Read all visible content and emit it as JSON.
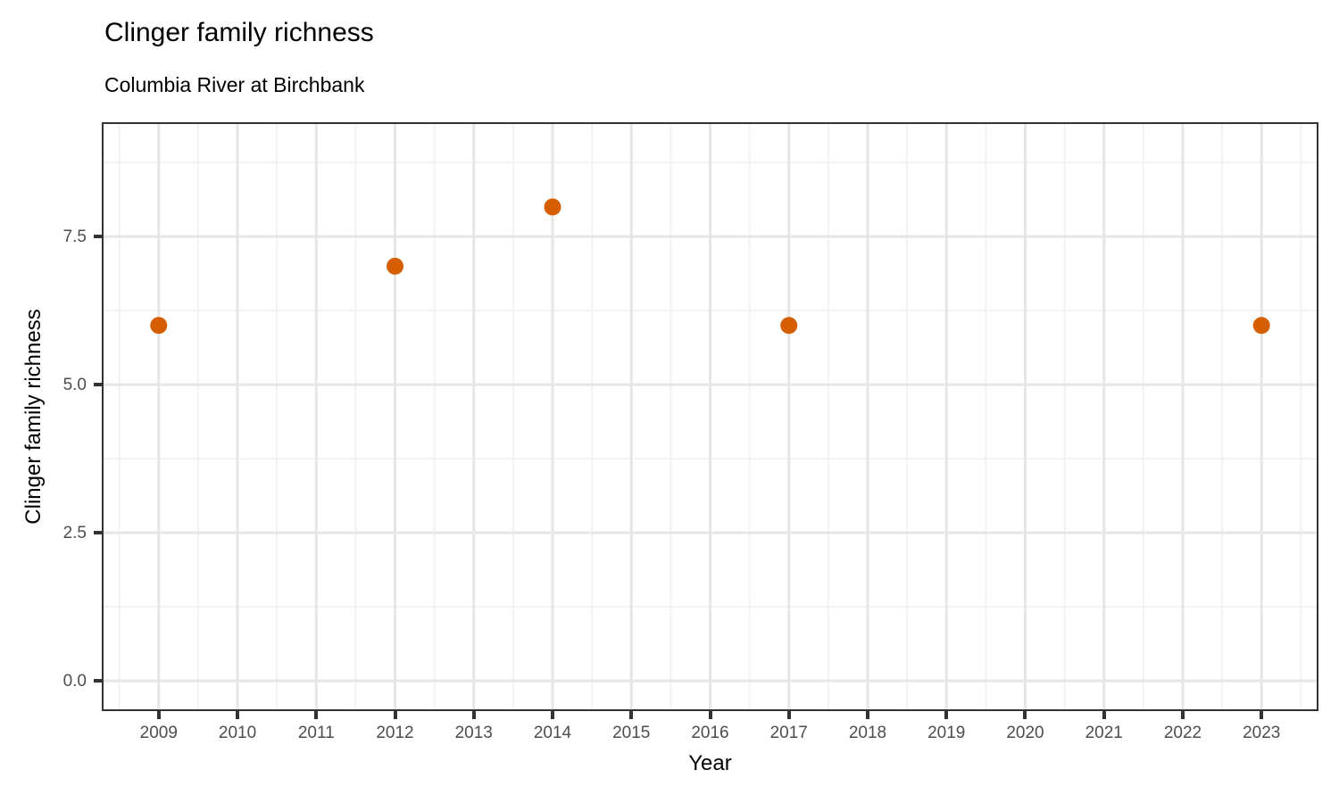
{
  "title": "Clinger family richness",
  "subtitle": "Columbia River at Birchbank",
  "chart_data": {
    "type": "scatter",
    "title": "Clinger family richness",
    "subtitle": "Columbia River at Birchbank",
    "xlabel": "Year",
    "ylabel": "Clinger family richness",
    "x": [
      2009,
      2012,
      2014,
      2017,
      2023
    ],
    "y": [
      6,
      7,
      8,
      6,
      6
    ],
    "xlim": [
      2008.3,
      2023.7
    ],
    "ylim": [
      -0.48,
      9.4
    ],
    "x_ticks": [
      2009,
      2010,
      2011,
      2012,
      2013,
      2014,
      2015,
      2016,
      2017,
      2018,
      2019,
      2020,
      2021,
      2022,
      2023
    ],
    "x_tick_labels": [
      "2009",
      "2010",
      "2011",
      "2012",
      "2013",
      "2014",
      "2015",
      "2016",
      "2017",
      "2018",
      "2019",
      "2020",
      "2021",
      "2022",
      "2023"
    ],
    "x_minor_ticks": [
      2008.5,
      2009.5,
      2010.5,
      2011.5,
      2012.5,
      2013.5,
      2014.5,
      2015.5,
      2016.5,
      2017.5,
      2018.5,
      2019.5,
      2020.5,
      2021.5,
      2022.5,
      2023.5
    ],
    "y_ticks": [
      0.0,
      2.5,
      5.0,
      7.5
    ],
    "y_tick_labels": [
      "0.0",
      "2.5",
      "5.0",
      "7.5"
    ],
    "y_minor_ticks": [
      1.25,
      3.75,
      6.25,
      8.75
    ],
    "grid": true,
    "legend_position": "none",
    "point_color": "#D55E00",
    "point_radius": 9.5,
    "grid_major_color": "#E6E6E6",
    "grid_minor_color": "#F2F2F2",
    "panel_border_color": "#333333",
    "tick_color": "#333333",
    "tick_label_color": "#4d4d4d"
  }
}
